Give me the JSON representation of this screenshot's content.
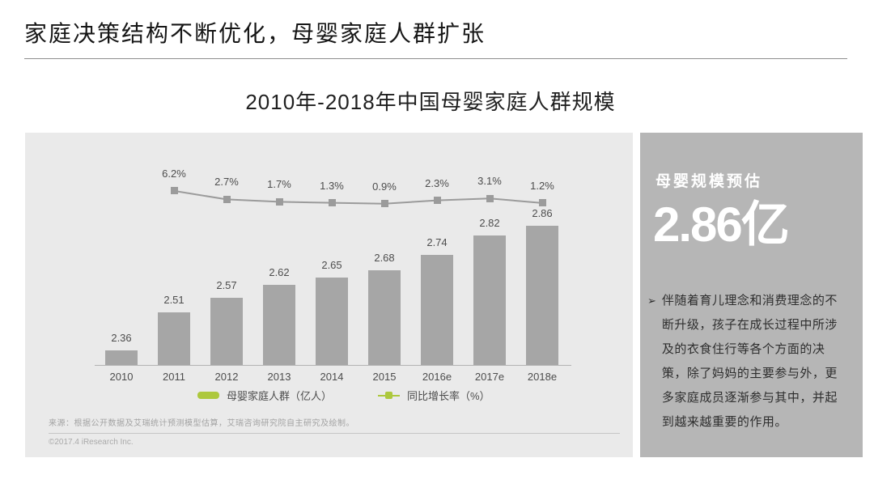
{
  "page": {
    "title": "家庭决策结构不断优化，母婴家庭人群扩张"
  },
  "chart": {
    "source": "来源：根据公开数据及艾瑞统计预测模型估算，艾瑞咨询研究院自主研究及绘制。",
    "copyright": "©2017.4 iResearch Inc."
  },
  "chart_data": {
    "type": "bar",
    "title": "2010年-2018年中国母婴家庭人群规模",
    "categories": [
      "2010",
      "2011",
      "2012",
      "2013",
      "2014",
      "2015",
      "2016e",
      "2017e",
      "2018e"
    ],
    "series": [
      {
        "name": "母婴家庭人群（亿人）",
        "type": "bar",
        "values": [
          2.36,
          2.51,
          2.57,
          2.62,
          2.65,
          2.68,
          2.74,
          2.82,
          2.86
        ],
        "color": "#a6a6a6"
      },
      {
        "name": "同比增长率（%）",
        "type": "line",
        "values": [
          null,
          6.2,
          2.7,
          1.7,
          1.3,
          0.9,
          2.3,
          3.1,
          1.2
        ],
        "labels": [
          "",
          "6.2%",
          "2.7%",
          "1.7%",
          "1.3%",
          "0.9%",
          "2.3%",
          "3.1%",
          "1.2%"
        ],
        "color": "#9b9b9b"
      }
    ],
    "legend": [
      {
        "label": "母婴家庭人群（亿人）",
        "swatch": "bar"
      },
      {
        "label": "同比增长率（%）",
        "swatch": "line-marker"
      }
    ],
    "legend_position": "bottom",
    "grid": false,
    "bar_axis_baseline": 2.3,
    "xlabel": "",
    "ylabel": ""
  },
  "sidebar": {
    "headline": "母婴规模预估",
    "big_number": "2.86亿",
    "bullet_icon": "➢",
    "bullet": "伴随着育儿理念和消费理念的不断升级，孩子在成长过程中所涉及的衣食住行等各个方面的决策，除了妈妈的主要参与外，更多家庭成员逐渐参与其中，并起到越来越重要的作用。"
  },
  "colors": {
    "accent_green": "#adc83d",
    "bar_gray": "#a6a6a6",
    "line_gray": "#9b9b9b",
    "panel_bg": "#eaeaea",
    "sidebar_bg": "#b6b6b6",
    "title_ink": "#161616",
    "label_gray": "#4d4d4d",
    "source_gray": "#a3a3a3"
  }
}
